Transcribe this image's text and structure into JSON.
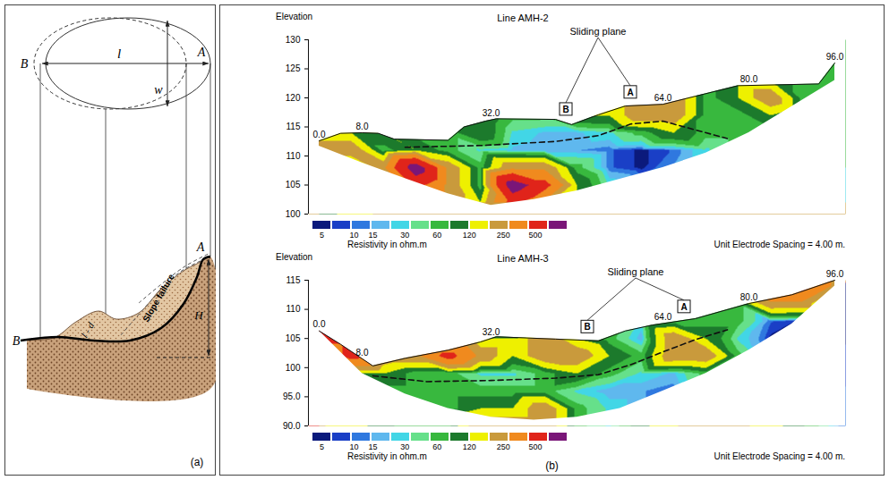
{
  "panel_a": {
    "label": "(a)",
    "plan": {
      "left": "B",
      "right": "A",
      "length": "l",
      "width": "w"
    },
    "section": {
      "left": "B",
      "right": "A",
      "failure": "Slope failure",
      "height": "H",
      "displaced": "l - d"
    }
  },
  "panel_b": {
    "label": "(b)"
  },
  "chart_data": [
    {
      "type": "resistivity_section",
      "title": "Line AMH-2",
      "ylabel": "Elevation",
      "xlim": [
        -2,
        98
      ],
      "ylim": [
        100,
        130
      ],
      "yticks": [
        100,
        105,
        110,
        115,
        120,
        125,
        130
      ],
      "tick_labels": "y",
      "distance_labels": [
        {
          "value": 0,
          "label": "0.0"
        },
        {
          "value": 8,
          "label": "8.0"
        },
        {
          "value": 32,
          "label": "32.0"
        },
        {
          "value": 64,
          "label": "64.0"
        },
        {
          "value": 80,
          "label": "80.0"
        },
        {
          "value": 96,
          "label": "96.0"
        }
      ],
      "surface": {
        "x": [
          0,
          4,
          8,
          11,
          14,
          24,
          27,
          31,
          33,
          44,
          47,
          52,
          57,
          64,
          78,
          93,
          96
        ],
        "elevation": [
          112.6,
          113.9,
          114,
          113.9,
          112.9,
          112.7,
          115,
          116,
          116.4,
          116.3,
          115.4,
          117.1,
          118.6,
          118.9,
          122.1,
          122.4,
          126
        ]
      },
      "bottom": {
        "x": [
          0,
          8,
          16,
          24,
          32,
          40,
          48,
          56,
          64,
          72,
          80,
          88,
          96
        ],
        "elevation": [
          111.7,
          108.8,
          106.1,
          103.5,
          101.5,
          102.5,
          104,
          106,
          108,
          110.5,
          114,
          118.5,
          123
        ]
      },
      "cells": {
        "x": [
          0,
          6,
          12,
          18,
          24,
          30,
          36,
          42,
          48,
          54,
          60,
          66,
          72,
          78,
          84,
          90,
          96
        ],
        "elevation": [
          126,
          123,
          120,
          117,
          114,
          111,
          108,
          105,
          102
        ],
        "resistivity": [
          [
            null,
            null,
            null,
            null,
            null,
            null,
            null,
            null,
            null,
            null,
            null,
            null,
            null,
            null,
            null,
            60,
            60
          ],
          [
            null,
            null,
            null,
            null,
            null,
            null,
            null,
            null,
            null,
            null,
            null,
            120,
            60,
            120,
            120,
            60,
            60
          ],
          [
            null,
            null,
            null,
            null,
            null,
            null,
            null,
            null,
            null,
            120,
            250,
            250,
            60,
            120,
            250,
            60,
            60
          ],
          [
            null,
            null,
            null,
            null,
            120,
            120,
            60,
            60,
            120,
            120,
            250,
            250,
            60,
            60,
            120,
            60,
            60
          ],
          [
            120,
            120,
            120,
            60,
            60,
            120,
            30,
            20,
            20,
            30,
            60,
            120,
            60,
            60,
            60,
            60,
            null
          ],
          [
            250,
            250,
            60,
            120,
            60,
            30,
            20,
            15,
            15,
            10,
            5,
            10,
            30,
            60,
            60,
            null,
            null
          ],
          [
            60,
            60,
            250,
            800,
            250,
            60,
            250,
            250,
            60,
            10,
            5,
            15,
            30,
            60,
            null,
            null,
            null
          ],
          [
            null,
            null,
            120,
            500,
            250,
            60,
            800,
            500,
            120,
            30,
            15,
            30,
            null,
            null,
            null,
            null,
            null
          ],
          [
            null,
            null,
            null,
            250,
            250,
            120,
            500,
            250,
            120,
            60,
            null,
            null,
            null,
            null,
            null,
            null,
            null
          ]
        ]
      },
      "sliding_plane": {
        "label": "Sliding plane",
        "line_style": "dashed",
        "x": [
          16,
          30,
          44,
          52,
          58,
          64,
          70,
          76
        ],
        "elevation": [
          111.5,
          111.8,
          112.5,
          113.5,
          115.5,
          116,
          114.5,
          113
        ]
      },
      "pointers": [
        {
          "label": "B",
          "x": 46
        },
        {
          "label": "A",
          "x": 58
        }
      ],
      "colorbar": {
        "label": "Resistivity in ohm.m",
        "lim": [
          4,
          1000
        ],
        "ticks": [
          5,
          10,
          15,
          30,
          60,
          120,
          250,
          500
        ],
        "colors": [
          "#0b1a7c",
          "#1a3fc6",
          "#2f78df",
          "#5fb8ee",
          "#42d6e6",
          "#66e08a",
          "#38b83e",
          "#1c7a2c",
          "#eef000",
          "#c99a3c",
          "#f08a1e",
          "#e0241a",
          "#7a1678"
        ]
      },
      "note": "Unit Electrode Spacing = 4.00 m."
    },
    {
      "type": "resistivity_section",
      "title": "Line AMH-3",
      "ylabel": "Elevation",
      "xlim": [
        -2,
        98
      ],
      "ylim": [
        90,
        115
      ],
      "yticks": [
        {
          "value": 90,
          "label": "90.0"
        },
        {
          "value": 95,
          "label": "95.0"
        },
        100,
        105,
        110,
        115
      ],
      "tick_labels": "y",
      "distance_labels": [
        {
          "value": 0,
          "label": "0.0"
        },
        {
          "value": 8,
          "label": "8.0"
        },
        {
          "value": 32,
          "label": "32.0"
        },
        {
          "value": 64,
          "label": "64.0"
        },
        {
          "value": 80,
          "label": "80.0"
        },
        {
          "value": 96,
          "label": "96.0"
        }
      ],
      "surface": {
        "x": [
          0,
          4,
          10,
          16,
          24,
          30,
          33,
          44,
          52,
          57,
          62,
          70,
          80,
          88,
          96
        ],
        "elevation": [
          106.3,
          104,
          100.3,
          101.6,
          103,
          104.4,
          105.3,
          104.9,
          104.6,
          106.3,
          107.3,
          108.4,
          111,
          112.5,
          115
        ]
      },
      "bottom": {
        "x": [
          0,
          8,
          16,
          24,
          32,
          40,
          48,
          56,
          64,
          72,
          80,
          88,
          96
        ],
        "elevation": [
          106.3,
          99,
          95.5,
          93,
          91.5,
          91,
          91.5,
          93,
          96,
          99,
          103,
          107.5,
          114
        ]
      },
      "cells": {
        "x": [
          0,
          6,
          12,
          18,
          24,
          30,
          36,
          42,
          48,
          54,
          60,
          66,
          72,
          78,
          84,
          90,
          96
        ],
        "elevation": [
          114,
          111,
          108,
          105,
          102,
          99,
          96,
          93,
          90
        ],
        "resistivity": [
          [
            null,
            null,
            null,
            null,
            null,
            null,
            null,
            null,
            null,
            null,
            null,
            null,
            null,
            null,
            500,
            500,
            250
          ],
          [
            null,
            null,
            null,
            null,
            null,
            null,
            null,
            null,
            null,
            null,
            null,
            null,
            null,
            60,
            250,
            250,
            5
          ],
          [
            500,
            null,
            null,
            null,
            null,
            null,
            null,
            null,
            null,
            null,
            30,
            60,
            60,
            60,
            10,
            5,
            5
          ],
          [
            500,
            500,
            250,
            120,
            120,
            120,
            120,
            250,
            120,
            60,
            15,
            250,
            120,
            30,
            5,
            5,
            null
          ],
          [
            250,
            500,
            250,
            250,
            500,
            250,
            120,
            250,
            250,
            120,
            60,
            250,
            250,
            60,
            10,
            10,
            null
          ],
          [
            null,
            120,
            120,
            60,
            60,
            30,
            30,
            60,
            120,
            60,
            30,
            20,
            60,
            30,
            15,
            null,
            null
          ],
          [
            null,
            null,
            60,
            60,
            60,
            60,
            60,
            60,
            30,
            15,
            15,
            10,
            30,
            30,
            null,
            null,
            null
          ],
          [
            null,
            null,
            null,
            60,
            60,
            120,
            120,
            250,
            60,
            30,
            15,
            30,
            250,
            null,
            null,
            null,
            null
          ],
          [
            null,
            null,
            null,
            null,
            60,
            250,
            250,
            250,
            60,
            30,
            null,
            null,
            null,
            null,
            null,
            null,
            null
          ]
        ]
      },
      "sliding_plane": {
        "label": "Sliding plane",
        "line_style": "dashed",
        "x": [
          10,
          20,
          32,
          44,
          52,
          58,
          64,
          70,
          76
        ],
        "elevation": [
          98.6,
          97.6,
          97.8,
          98.2,
          98.8,
          100.5,
          102.7,
          104.8,
          106.5
        ]
      },
      "pointers": [
        {
          "label": "B",
          "x": 50
        },
        {
          "label": "A",
          "x": 68
        }
      ],
      "colorbar": {
        "label": "Resistivity in ohm.m",
        "lim": [
          4,
          1000
        ],
        "ticks": [
          5,
          10,
          15,
          30,
          60,
          120,
          250,
          500
        ],
        "colors": [
          "#0b1a7c",
          "#1a3fc6",
          "#2f78df",
          "#5fb8ee",
          "#42d6e6",
          "#66e08a",
          "#38b83e",
          "#1c7a2c",
          "#eef000",
          "#c99a3c",
          "#f08a1e",
          "#e0241a",
          "#7a1678"
        ]
      },
      "note": "Unit Electrode Spacing = 4.00 m."
    }
  ]
}
